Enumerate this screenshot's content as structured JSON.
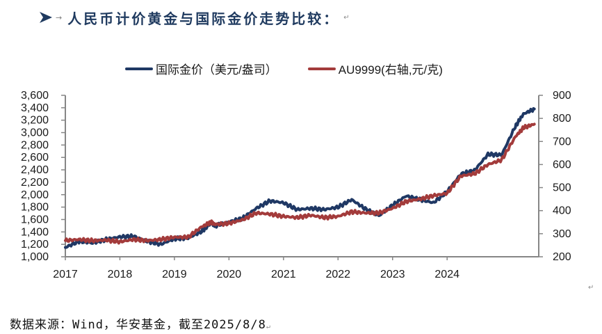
{
  "header": {
    "bullet_icon": "arrow-bullet-icon",
    "title": "人民币计价黄金与国际金价走势比较：",
    "paragraph_mark": "↵"
  },
  "legend": {
    "items": [
      {
        "label": "国际金价（美元/盎司）",
        "color": "#1f3864"
      },
      {
        "label": "AU9999(右轴,元/克)",
        "color": "#a33b3b"
      }
    ]
  },
  "footer": {
    "source": "数据来源：Wind，华安基金，截至2025/8/8",
    "paragraph_mark": "↵",
    "corner_mark": "↵"
  },
  "chart_data": {
    "type": "line",
    "title": "人民币计价黄金与国际金价走势比较",
    "xlabel": "",
    "ylabel": "国际金价（美元/盎司）",
    "y2label": "AU9999（元/克）",
    "x_ticks": [
      "2017",
      "2018",
      "2019",
      "2020",
      "2021",
      "2022",
      "2023",
      "2024"
    ],
    "ylim": [
      1000,
      3600
    ],
    "y_ticks": [
      "1,000",
      "1,200",
      "1,400",
      "1,600",
      "1,800",
      "2,000",
      "2,200",
      "2,400",
      "2,600",
      "2,800",
      "3,000",
      "3,200",
      "3,400",
      "3,600"
    ],
    "y2lim": [
      200,
      900
    ],
    "y2_ticks": [
      "200",
      "300",
      "400",
      "500",
      "600",
      "700",
      "800",
      "900"
    ],
    "grid": false,
    "legend_position": "top",
    "x": [
      2017.0,
      2017.25,
      2017.5,
      2017.75,
      2018.0,
      2018.25,
      2018.5,
      2018.75,
      2019.0,
      2019.25,
      2019.5,
      2019.67,
      2019.75,
      2020.0,
      2020.25,
      2020.5,
      2020.75,
      2021.0,
      2021.25,
      2021.5,
      2021.75,
      2022.0,
      2022.25,
      2022.5,
      2022.75,
      2023.0,
      2023.25,
      2023.5,
      2023.75,
      2024.0,
      2024.25,
      2024.5,
      2024.75,
      2025.0,
      2025.25,
      2025.4,
      2025.6
    ],
    "series": [
      {
        "name": "国际金价（美元/盎司）",
        "axis": "left",
        "color": "#1f3864",
        "values": [
          1150,
          1250,
          1220,
          1280,
          1320,
          1330,
          1250,
          1200,
          1290,
          1300,
          1410,
          1540,
          1500,
          1560,
          1620,
          1780,
          1900,
          1870,
          1760,
          1780,
          1760,
          1800,
          1920,
          1770,
          1660,
          1830,
          1980,
          1920,
          1870,
          2050,
          2330,
          2390,
          2650,
          2640,
          3100,
          3300,
          3380
        ]
      },
      {
        "name": "AU9999(右轴,元/克)",
        "axis": "right",
        "color": "#a33b3b",
        "values": [
          270,
          275,
          270,
          272,
          265,
          275,
          270,
          275,
          285,
          285,
          330,
          350,
          340,
          345,
          360,
          390,
          385,
          375,
          370,
          380,
          370,
          375,
          395,
          390,
          390,
          410,
          440,
          450,
          465,
          475,
          550,
          560,
          600,
          620,
          720,
          760,
          775
        ]
      }
    ]
  }
}
